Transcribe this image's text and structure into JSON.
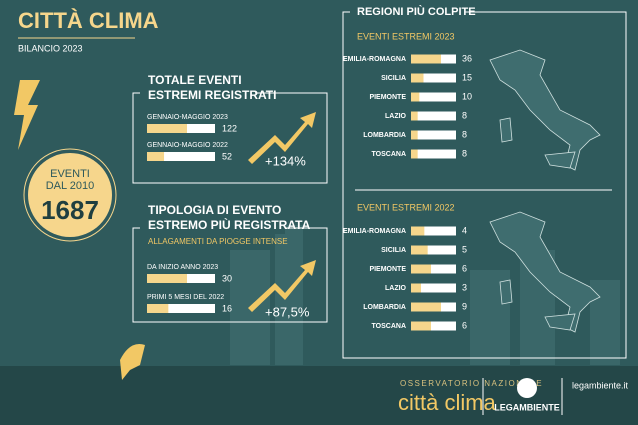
{
  "header": {
    "title": "CITTÀ CLIMA",
    "subtitle": "BILANCIO 2023"
  },
  "since": {
    "label_lines": [
      "EVENTI",
      "DAL 2010"
    ],
    "value": 1687
  },
  "total": {
    "title_lines": [
      "TOTALE EVENTI",
      "ESTREMI REGISTRATI"
    ],
    "rows": [
      {
        "label": "GENNAIO-MAGGIO 2023",
        "value": 122
      },
      {
        "label": "GENNAIO-MAGGIO 2022",
        "value": 52
      }
    ],
    "change": "+134%"
  },
  "type_of_event": {
    "title_lines": [
      "TIPOLOGIA DI EVENTO",
      "ESTREMO PIÙ REGISTRATA"
    ],
    "subtitle": "ALLAGAMENTI DA PIOGGE INTENSE",
    "rows": [
      {
        "label": "DA INIZIO ANNO 2023",
        "value": 30
      },
      {
        "label": "PRIMI 5 MESI DEL 2022",
        "value": 16
      }
    ],
    "change": "+87,5%"
  },
  "regions": {
    "title": "REGIONI PIÙ COLPITE",
    "panels": [
      {
        "title": "EVENTI ESTREMI 2023",
        "rows": [
          {
            "label": "EMILIA-ROMAGNA",
            "value": 36
          },
          {
            "label": "SICILIA",
            "value": 15
          },
          {
            "label": "PIEMONTE",
            "value": 10
          },
          {
            "label": "LAZIO",
            "value": 8
          },
          {
            "label": "LOMBARDIA",
            "value": 8
          },
          {
            "label": "TOSCANA",
            "value": 8
          }
        ]
      },
      {
        "title": "EVENTI ESTREMI 2022",
        "rows": [
          {
            "label": "EMILIA-ROMAGNA",
            "value": 4
          },
          {
            "label": "SICILIA",
            "value": 5
          },
          {
            "label": "PIEMONTE",
            "value": 6
          },
          {
            "label": "LAZIO",
            "value": 3
          },
          {
            "label": "LOMBARDIA",
            "value": 9
          },
          {
            "label": "TOSCANA",
            "value": 6
          }
        ]
      }
    ]
  },
  "footer": {
    "observatory": "OSSERVATORIO NAZIONALE",
    "brand": "città clima",
    "org": "LEGAMBIENTE",
    "site": "legambiente.it"
  }
}
